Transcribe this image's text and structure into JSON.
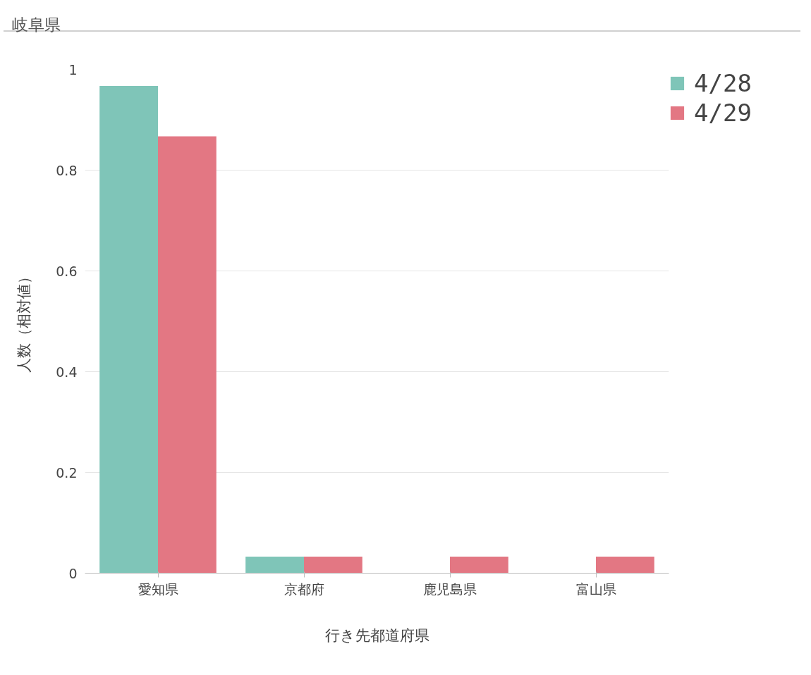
{
  "chart_data": {
    "type": "bar",
    "title": "岐阜県",
    "xlabel": "行き先都道府県",
    "ylabel": "人数（相対値）",
    "categories": [
      "愛知県",
      "京都府",
      "鹿児島県",
      "富山県"
    ],
    "series": [
      {
        "name": "4/28",
        "color": "#7fc5b8",
        "values": [
          0.967,
          0.033,
          null,
          null
        ]
      },
      {
        "name": "4/29",
        "color": "#e37783",
        "values": [
          0.867,
          0.033,
          0.033,
          0.033
        ]
      }
    ],
    "ylim": [
      0,
      1
    ],
    "yticks": [
      0,
      0.2,
      0.4,
      0.6,
      0.8,
      1
    ],
    "grid": "y",
    "legend": "top right"
  }
}
